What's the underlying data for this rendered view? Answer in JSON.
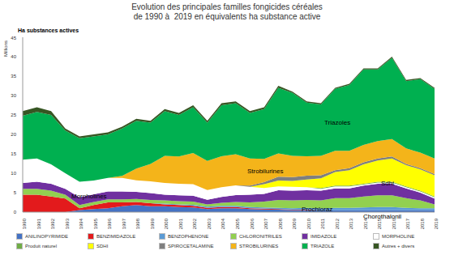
{
  "chart_data": {
    "type": "area",
    "stacked": true,
    "grid": false,
    "title": [
      "Evolution des principales familles fongicides céréales",
      "de 1990 à  2019 en équivalents ha substance active"
    ],
    "ylabel": "Ha substances actives",
    "yunit": "Millions",
    "categories": [
      "1990",
      "1991",
      "1992",
      "1993",
      "1994",
      "1995",
      "1996",
      "1997",
      "1998",
      "1999",
      "2000",
      "2001",
      "2002",
      "2003",
      "2004",
      "2005",
      "2006",
      "2007",
      "2008",
      "2009",
      "2010",
      "2011",
      "2012",
      "2013",
      "2014",
      "2015",
      "2016",
      "2017",
      "2018",
      "2019"
    ],
    "ylim": [
      0,
      45
    ],
    "yticks": [
      0,
      5,
      10,
      15,
      20,
      25,
      30,
      35,
      40,
      45
    ],
    "annotations": [
      "Triazoles",
      "Strobilurines",
      "Sdhi",
      "Morpholines",
      "Prochloraz",
      "Chorothalonil"
    ],
    "series": [
      {
        "name": "ANILINOPYRIMIDE",
        "color": "#4472c4",
        "values": [
          0,
          0,
          0,
          0,
          0.5,
          0.8,
          1,
          1.5,
          1.8,
          1.5,
          1.5,
          1.3,
          1.2,
          0.8,
          1,
          1,
          0.8,
          0.7,
          0.6,
          0.5,
          0.5,
          0.5,
          0.5,
          0.5,
          0.5,
          0.5,
          0.5,
          0.5,
          0.5,
          0.5
        ]
      },
      {
        "name": "BENZIMIDAZOLE",
        "color": "#e31a1c",
        "values": [
          4.5,
          4.5,
          4,
          3.5,
          0.5,
          1,
          1.5,
          1,
          0.8,
          0.8,
          0.5,
          0.5,
          0.4,
          0.3,
          0.3,
          0.3,
          0.2,
          0.2,
          0.2,
          0.1,
          0.1,
          0,
          0,
          0,
          0,
          0,
          0,
          0,
          0,
          0
        ]
      },
      {
        "name": "BENZOPHENONE",
        "color": "#5b9bd5",
        "values": [
          0,
          0,
          0,
          0,
          0,
          0,
          0,
          0,
          0,
          0,
          0.2,
          0.2,
          0.3,
          0.3,
          0.3,
          0.3,
          0.3,
          0.3,
          0.3,
          0.4,
          0.5,
          0.5,
          0.6,
          0.6,
          0.7,
          0.8,
          0.8,
          0.6,
          0.5,
          0.5
        ]
      },
      {
        "name": "CHLORONITRILES",
        "color": "#92d050",
        "values": [
          1.5,
          1.5,
          1.5,
          1,
          0.8,
          0.8,
          0.8,
          0.8,
          0.8,
          0.8,
          0.8,
          0.8,
          0.8,
          0.6,
          0.8,
          1,
          1.2,
          1.5,
          2,
          2,
          2,
          2,
          2.5,
          2.5,
          2.8,
          3,
          3,
          2.5,
          2,
          1
        ]
      },
      {
        "name": "IMIDAZOLE",
        "color": "#7030a0",
        "values": [
          1.5,
          1.8,
          1.8,
          1.5,
          2,
          2,
          2,
          2,
          1.8,
          1.8,
          1.5,
          1.5,
          1.5,
          1.2,
          1.5,
          1.8,
          2,
          2,
          2.5,
          2.5,
          2.5,
          2.5,
          2.5,
          2.5,
          2.8,
          3,
          3,
          2.5,
          2,
          1.5
        ]
      },
      {
        "name": "MORPHOLINE",
        "color": "#ffffff",
        "values": [
          6,
          6,
          5,
          4,
          4,
          3.5,
          3.5,
          3.5,
          3,
          3,
          3,
          3,
          3,
          2.5,
          2.5,
          2.5,
          2,
          1.5,
          1,
          1,
          0.8,
          0.5,
          0.5,
          0.5,
          0.3,
          0.3,
          0.3,
          0.3,
          0.3,
          0.3
        ]
      },
      {
        "name": "Produit naturel",
        "color": "#70ad47",
        "values": [
          0,
          0,
          0,
          0,
          0,
          0,
          0,
          0,
          0,
          0,
          0,
          0,
          0,
          0,
          0,
          0,
          0,
          0,
          0,
          0,
          0,
          0.2,
          0.2,
          0.2,
          0.2,
          0.2,
          0.2,
          0.2,
          0.2,
          0.2
        ]
      },
      {
        "name": "SDHI",
        "color": "#ffff00",
        "values": [
          0,
          0,
          0,
          0,
          0,
          0,
          0,
          0,
          0,
          0,
          0,
          0,
          0,
          0,
          0,
          0,
          0,
          1,
          1.5,
          1.5,
          2,
          2.5,
          3.5,
          4,
          5,
          5.5,
          6,
          5.5,
          5.5,
          5.5
        ]
      },
      {
        "name": "SPIROCETALAMINE",
        "color": "#7f7f7f",
        "values": [
          0,
          0,
          0,
          0,
          0,
          0,
          0,
          0,
          0,
          0,
          0,
          0,
          0,
          0,
          0,
          0,
          0.3,
          0.5,
          1,
          1,
          1,
          0.8,
          0.5,
          0.5,
          0.5,
          0.5,
          0.5,
          0.3,
          0.3,
          0.3
        ]
      },
      {
        "name": "STROBILURINES",
        "color": "#f4b41a",
        "values": [
          0,
          0,
          0,
          0,
          0,
          0,
          0,
          0.5,
          3,
          4.5,
          7,
          7,
          8,
          7.5,
          8,
          8,
          7,
          6,
          6,
          5.5,
          5,
          5,
          5,
          4.5,
          4.5,
          4.5,
          4.5,
          4,
          4,
          4
        ]
      },
      {
        "name": "TRIAZOLE",
        "color": "#00b050",
        "values": [
          11.3,
          12,
          12.7,
          11,
          11.2,
          11.4,
          11.2,
          12.2,
          12.3,
          10.6,
          11.5,
          10.7,
          11.8,
          9.8,
          13.1,
          13.1,
          11.7,
          12.8,
          16.9,
          16.2,
          13.8,
          13.2,
          15.9,
          16.9,
          19.4,
          18.4,
          20.9,
          17.3,
          18.9,
          17.9
        ]
      },
      {
        "name": "Autres + divers",
        "color": "#375623",
        "values": [
          1.2,
          1.2,
          1,
          0.5,
          0.5,
          0.5,
          0.5,
          0.5,
          0.5,
          0.5,
          0.5,
          0.5,
          0.5,
          0.5,
          0.5,
          0.5,
          0.5,
          0.5,
          0.5,
          0.3,
          0.3,
          0.3,
          0.3,
          0.3,
          0.3,
          0.3,
          0.3,
          0.3,
          0.3,
          0.3
        ]
      }
    ]
  }
}
